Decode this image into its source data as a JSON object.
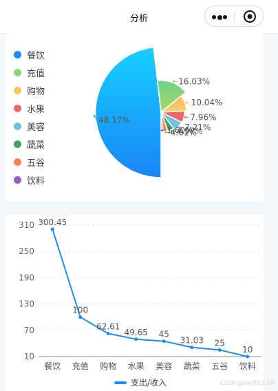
{
  "header": {
    "title": "分析"
  },
  "legend": [
    {
      "label": "餐饮",
      "color": "#1890ff"
    },
    {
      "label": "充值",
      "color": "#8bd46e"
    },
    {
      "label": "购物",
      "color": "#fbc55f"
    },
    {
      "label": "水果",
      "color": "#ee6666"
    },
    {
      "label": "美容",
      "color": "#73c0de"
    },
    {
      "label": "蔬菜",
      "color": "#3ba272"
    },
    {
      "label": "五谷",
      "color": "#fc8452"
    },
    {
      "label": "饮料",
      "color": "#9a60b4"
    }
  ],
  "chart_data": [
    {
      "type": "pie",
      "categories": [
        "餐饮",
        "充值",
        "购物",
        "水果",
        "美容",
        "蔬菜",
        "五谷",
        "饮料"
      ],
      "values": [
        48.17,
        16.03,
        10.04,
        7.96,
        7.21,
        4.97,
        4.01,
        1.6
      ],
      "labels": [
        "48.17%",
        "16.03%",
        "10.04%",
        "7.96%",
        "7.21%",
        "4.97%",
        "4.01%",
        "1.60%"
      ],
      "style": "rose",
      "legend": "left"
    },
    {
      "type": "line",
      "categories": [
        "餐饮",
        "充值",
        "购物",
        "水果",
        "美容",
        "蔬菜",
        "五谷",
        "饮料"
      ],
      "series": [
        {
          "name": "支出/收入",
          "values": [
            300.45,
            100,
            62.61,
            49.65,
            45,
            31.03,
            25,
            10
          ]
        }
      ],
      "value_labels": [
        "300.45",
        "100",
        "62.61",
        "49.65",
        "45",
        "31.03",
        "25",
        "10"
      ],
      "yticks": [
        "10",
        "70",
        "130",
        "190",
        "250",
        "310"
      ],
      "ylim": [
        10,
        310
      ],
      "grid": true,
      "legend": "bottom"
    }
  ],
  "watermark": "CSDN @zwj的CS-DN"
}
